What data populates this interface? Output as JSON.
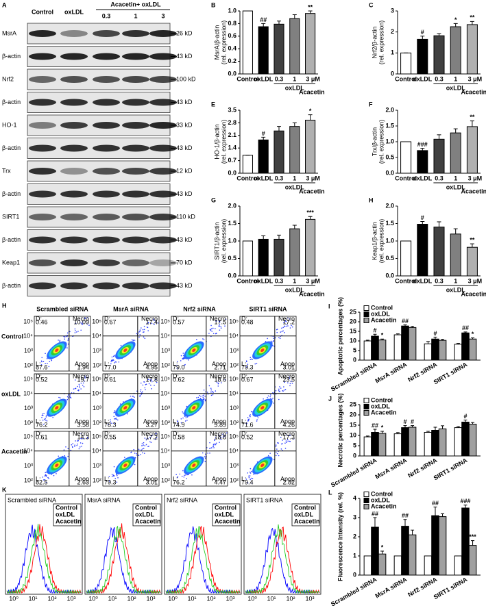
{
  "blot": {
    "panel": "A",
    "lanes": [
      "Control",
      "oxLDL"
    ],
    "treatment": "Acacetin+ oxLDL",
    "doses": [
      "0.3",
      "1",
      "3"
    ],
    "rows": [
      {
        "protein": "MsrA",
        "size": "26 kD"
      },
      {
        "protein": "β-actin",
        "size": "43 kD"
      },
      {
        "protein": "Nrf2",
        "size": "100 kD"
      },
      {
        "protein": "β-actin",
        "size": "43 kD"
      },
      {
        "protein": "HO-1",
        "size": "33 kD"
      },
      {
        "protein": "β-actin",
        "size": "43 kD"
      },
      {
        "protein": "Trx",
        "size": "12 kD"
      },
      {
        "protein": "β-actin",
        "size": "43 kD"
      },
      {
        "protein": "SIRT1",
        "size": "110 kD"
      },
      {
        "protein": "β-actin",
        "size": "43 kD"
      },
      {
        "protein": "Keap1",
        "size": "70 kD"
      },
      {
        "protein": "β-actin",
        "size": "43 kD"
      }
    ]
  },
  "chart_data": [
    {
      "type": "bar",
      "panel": "B",
      "ylabel": "MsrA/β-actin",
      "ylabel2": "(rel. expression)",
      "categories": [
        "Control",
        "oxLDL",
        "0.3",
        "1",
        "3 μM"
      ],
      "group_label": "oxLDL",
      "treatment_label": "Acacetin",
      "values": [
        1.0,
        0.75,
        0.79,
        0.88,
        0.96
      ],
      "errors": [
        0,
        0.05,
        0.05,
        0.06,
        0.04
      ],
      "annotations": [
        null,
        "##",
        null,
        null,
        "**"
      ],
      "colors": [
        "#ffffff",
        "#000000",
        "#404040",
        "#808080",
        "#b0b0b0"
      ],
      "ylim": [
        0,
        1.0
      ],
      "yticks": [
        {
          "value": 0,
          "label": "0.0"
        },
        0.2,
        0.4,
        0.6,
        0.8,
        {
          "value": 1,
          "label": "1.0"
        }
      ]
    },
    {
      "type": "bar",
      "panel": "C",
      "ylabel": "Nrf2/β-actin",
      "ylabel2": "(rel. expression)",
      "categories": [
        "Control",
        "oxLDL",
        "0.3",
        "1",
        "3 μM"
      ],
      "group_label": "oxLDL",
      "treatment_label": "Acacetin",
      "values": [
        1.0,
        1.65,
        1.82,
        2.25,
        2.35
      ],
      "errors": [
        0,
        0.15,
        0.1,
        0.15,
        0.15
      ],
      "annotations": [
        null,
        "#",
        null,
        "*",
        "**"
      ],
      "colors": [
        "#ffffff",
        "#000000",
        "#404040",
        "#808080",
        "#b0b0b0"
      ],
      "ylim": [
        0,
        3
      ],
      "yticks": [
        0,
        1,
        2,
        3
      ]
    },
    {
      "type": "bar",
      "panel": "E",
      "ylabel": "HO-1/β-actin",
      "ylabel2": "(rel. expression)",
      "categories": [
        "Control",
        "oxLDL",
        "0.3",
        "1",
        "3 μM"
      ],
      "group_label": "oxLDL",
      "treatment_label": "Acacetin",
      "values": [
        1.0,
        1.85,
        2.35,
        2.6,
        2.95
      ],
      "errors": [
        0,
        0.15,
        0.25,
        0.2,
        0.3
      ],
      "annotations": [
        null,
        "#",
        null,
        null,
        "*"
      ],
      "colors": [
        "#ffffff",
        "#000000",
        "#404040",
        "#808080",
        "#b0b0b0"
      ],
      "ylim": [
        0,
        3.5
      ],
      "yticks": [
        {
          "value": 0,
          "label": "0.0"
        },
        0.7,
        1.4,
        2.1,
        2.8,
        3.5
      ]
    },
    {
      "type": "bar",
      "panel": "F",
      "ylabel": "Trx/β-actin",
      "ylabel2": "(rel. expression)",
      "categories": [
        "Control",
        "oxLDL",
        "0.3",
        "1",
        "3 μM"
      ],
      "group_label": "oxLDL",
      "treatment_label": "Acacetin",
      "values": [
        1.0,
        0.72,
        1.08,
        1.28,
        1.48
      ],
      "errors": [
        0,
        0.07,
        0.14,
        0.13,
        0.18
      ],
      "annotations": [
        null,
        "###",
        null,
        null,
        "**"
      ],
      "colors": [
        "#ffffff",
        "#000000",
        "#404040",
        "#808080",
        "#b0b0b0"
      ],
      "ylim": [
        0,
        2.0
      ],
      "yticks": [
        {
          "value": 0,
          "label": "0.0"
        },
        0.5,
        {
          "value": 1,
          "label": "1.0"
        },
        1.5,
        {
          "value": 2,
          "label": "2.0"
        }
      ]
    },
    {
      "type": "bar",
      "panel": "G",
      "ylabel": "SIRT1/β-actin",
      "ylabel2": "(rel. expression)",
      "categories": [
        "Control",
        "oxLDL",
        "0.3",
        "1",
        "3 μM"
      ],
      "group_label": "oxLDL",
      "treatment_label": "Acacetin",
      "values": [
        1.0,
        1.05,
        1.05,
        1.35,
        1.62
      ],
      "errors": [
        0,
        0.1,
        0.12,
        0.1,
        0.08
      ],
      "annotations": [
        null,
        null,
        null,
        null,
        "***"
      ],
      "colors": [
        "#ffffff",
        "#000000",
        "#404040",
        "#808080",
        "#b0b0b0"
      ],
      "ylim": [
        0,
        2.0
      ],
      "yticks": [
        {
          "value": 0,
          "label": "0.0"
        },
        0.5,
        {
          "value": 1,
          "label": "1.0"
        },
        1.5,
        {
          "value": 2,
          "label": "2.0"
        }
      ]
    },
    {
      "type": "bar",
      "panel": "H",
      "ylabel": "Keap1/β-actin",
      "ylabel2": "(rel. expression)",
      "categories": [
        "Control",
        "oxLDL",
        "0.3",
        "1",
        "3 μM"
      ],
      "group_label": "oxLDL",
      "treatment_label": "Acacetin",
      "values": [
        1.0,
        1.48,
        1.4,
        1.2,
        0.82
      ],
      "errors": [
        0,
        0.08,
        0.15,
        0.15,
        0.1
      ],
      "annotations": [
        null,
        "#",
        null,
        null,
        "**"
      ],
      "colors": [
        "#ffffff",
        "#000000",
        "#404040",
        "#808080",
        "#b0b0b0"
      ],
      "ylim": [
        0,
        2.0
      ],
      "yticks": [
        {
          "value": 0,
          "label": "0.0"
        },
        0.5,
        {
          "value": 1,
          "label": "1.0"
        },
        1.5,
        {
          "value": 2,
          "label": "2.0"
        }
      ]
    },
    {
      "type": "bar",
      "panel": "I",
      "ylabel": "Apoptotic percentages (%)",
      "categories": [
        "Scrambled siRNA",
        "MsrA siRNA",
        "Nrf2 siRNA",
        "SIRT1 siRNA"
      ],
      "legend": "upper-left",
      "ylim": [
        0,
        25
      ],
      "yticks": [
        0,
        5,
        10,
        15,
        20,
        25
      ],
      "series": [
        {
          "name": "Control",
          "color": "#ffffff",
          "values": [
            10,
            13.2,
            8.5,
            8.3
          ],
          "errors": [
            0.4,
            0.5,
            1.2,
            0.4
          ],
          "annotations": [
            null,
            null,
            null,
            null
          ]
        },
        {
          "name": "oxLDL",
          "color": "#000000",
          "values": [
            12.5,
            17.8,
            11,
            14.2
          ],
          "errors": [
            1.0,
            0.6,
            1.0,
            0.5
          ],
          "annotations": [
            "#",
            "##",
            "#",
            "##"
          ]
        },
        {
          "name": "Acacetin",
          "color": "#a0a0a0",
          "values": [
            10.5,
            17,
            10.3,
            11
          ],
          "errors": [
            0.5,
            0.6,
            0.5,
            0.6
          ],
          "annotations": [
            "*",
            null,
            null,
            "*"
          ]
        }
      ]
    },
    {
      "type": "bar",
      "panel": "J",
      "ylabel": "Necrotic percentages (%)",
      "categories": [
        "Scrambled siRNA",
        "MsrA siRNA",
        "Nrf2 siRNA",
        "SIRT1 siRNA"
      ],
      "legend": "upper-left",
      "ylim": [
        0,
        25
      ],
      "yticks": [
        0,
        5,
        10,
        15,
        20,
        25
      ],
      "series": [
        {
          "name": "Control",
          "color": "#ffffff",
          "values": [
            9.3,
            10.8,
            11.5,
            13.8
          ],
          "errors": [
            0.4,
            0.6,
            0.5,
            0.5
          ],
          "annotations": [
            null,
            null,
            null,
            null
          ]
        },
        {
          "name": "oxLDL",
          "color": "#000000",
          "values": [
            11.5,
            13.8,
            12.5,
            16.5
          ],
          "errors": [
            1.5,
            1.0,
            1.5,
            1.0
          ],
          "annotations": [
            "##",
            "#",
            null,
            "#"
          ]
        },
        {
          "name": "Acacetin",
          "color": "#a0a0a0",
          "values": [
            11,
            14,
            13.2,
            15.5
          ],
          "errors": [
            1.0,
            0.8,
            1.5,
            0.8
          ],
          "annotations": [
            "*",
            "#",
            null,
            null
          ]
        }
      ]
    },
    {
      "type": "bar",
      "panel": "L",
      "ylabel": "Fluorescence Intensity (rel. %)",
      "categories": [
        "Scrambled siRNA",
        "MsrA siRNA",
        "Nrf2 siRNA",
        "SIRT1 siRNA"
      ],
      "legend": "upper-left",
      "ylim": [
        0,
        4
      ],
      "yticks": [
        0,
        1,
        2,
        3,
        4
      ],
      "series": [
        {
          "name": "Control",
          "color": "#ffffff",
          "values": [
            1,
            1,
            1,
            1
          ],
          "errors": [
            0,
            0,
            0,
            0
          ],
          "annotations": [
            null,
            null,
            null,
            null
          ]
        },
        {
          "name": "oxLDL",
          "color": "#000000",
          "values": [
            2.5,
            2.55,
            3.1,
            3.5
          ],
          "errors": [
            0.5,
            0.35,
            0.45,
            0.15
          ],
          "annotations": [
            "##",
            "##",
            "##",
            "###"
          ]
        },
        {
          "name": "Acacetin",
          "color": "#a0a0a0",
          "values": [
            1.1,
            2.1,
            3.05,
            1.55
          ],
          "errors": [
            0.15,
            0.25,
            0.15,
            0.25
          ],
          "annotations": [
            "*",
            null,
            null,
            "***"
          ]
        }
      ]
    }
  ],
  "flow": {
    "panel": "H",
    "columns": [
      "Scrambled siRNA",
      "MsrA siRNA",
      "Nrf2 siRNA",
      "SIRT1 siRNA"
    ],
    "rows": [
      "Control",
      "oxLDL",
      "Acacetin"
    ],
    "quadrant_labels": [
      "D:",
      "Necro",
      "L:",
      "Apop"
    ],
    "axis_ticks": [
      "10⁵",
      "10⁴",
      "10³",
      "10²"
    ],
    "quadrants": [
      [
        [
          "0.46",
          "10.09",
          "87.6",
          "1.94"
        ],
        [
          "0.67",
          "17.4",
          "77.0",
          "4.95"
        ],
        [
          "0.57",
          "17.5",
          "79.0",
          "2.71"
        ],
        [
          "0.48",
          "17.2",
          "79.3",
          "3.01"
        ]
      ],
      [
        [
          "0.52",
          "19.7",
          "76.2",
          "3.58"
        ],
        [
          "0.61",
          "17.8",
          "78.3",
          "3.27"
        ],
        [
          "0.62",
          "18.6",
          "74.9",
          "5.89"
        ],
        [
          "0.67",
          "23.5",
          "71.6",
          "4.26"
        ]
      ],
      [
        [
          "0.61",
          "14.3",
          "82.5",
          "2.63"
        ],
        [
          "0.55",
          "17.2",
          "79.3",
          "3.01"
        ],
        [
          "0.58",
          "18.8",
          "76.2",
          "4.47"
        ],
        [
          "0.52",
          "17.3",
          "79.4",
          "2.82"
        ]
      ]
    ]
  },
  "histograms": {
    "panel": "K",
    "titles": [
      "Scrambled siRNA",
      "MsrA siRNA",
      "Nrf2 siRNA",
      "SIRT1 siRNA"
    ],
    "legend": [
      "Control",
      "oxLDL",
      "Acacetin"
    ],
    "legend_colors": [
      "#0000ff",
      "#ff0000",
      "#22cc22"
    ],
    "axis_ticks": [
      "10⁰",
      "10¹",
      "10²",
      "10³"
    ]
  }
}
